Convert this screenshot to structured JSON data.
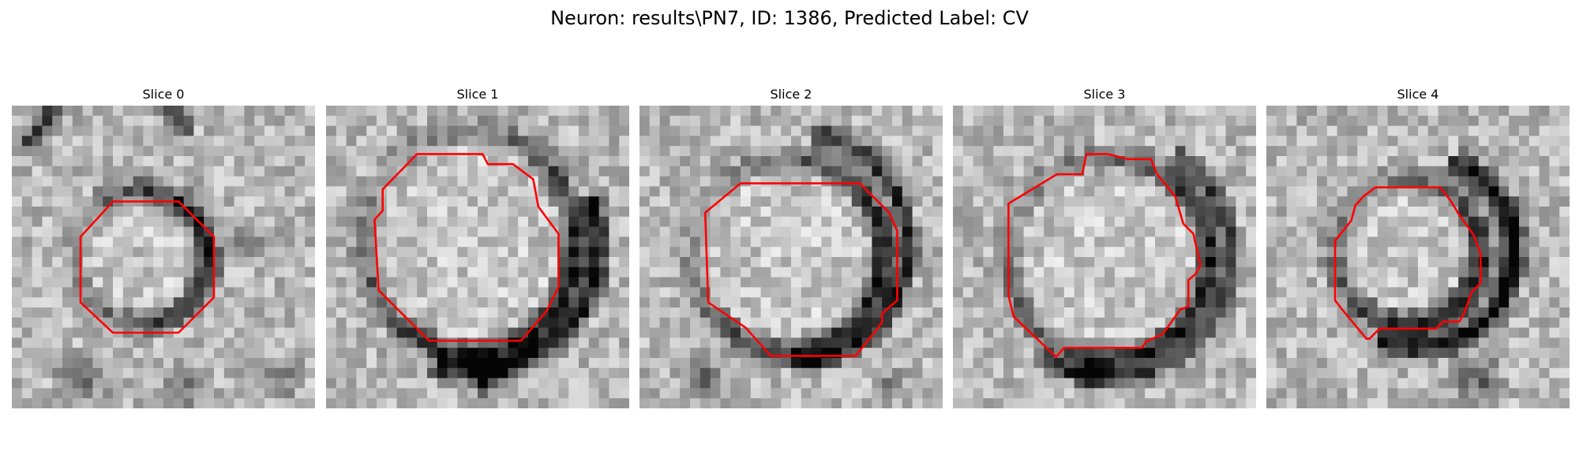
{
  "figure": {
    "title": "Neuron: results\\PN7, ID: 1386, Predicted Label: CV"
  },
  "panels": [
    {
      "title": "Slice 0"
    },
    {
      "title": "Slice 1"
    },
    {
      "title": "Slice 2"
    },
    {
      "title": "Slice 3"
    },
    {
      "title": "Slice 4"
    }
  ],
  "colors": {
    "contour": "#ff0000"
  }
}
